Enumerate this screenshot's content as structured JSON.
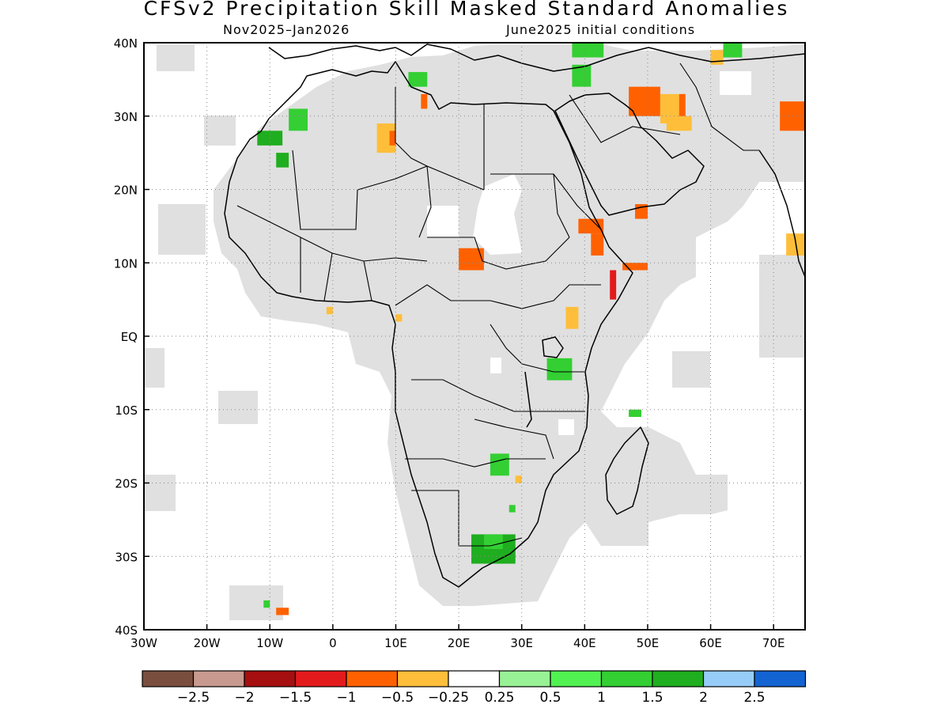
{
  "title": "CFSv2 Precipitation Skill Masked Standard Anomalies",
  "subtitle_left": "Nov2025–Jan2026",
  "subtitle_right": "June2025 initial conditions",
  "map": {
    "lon_range": [
      -30,
      75
    ],
    "lat_range": [
      -40,
      40
    ],
    "grid": true,
    "x_ticks": [
      {
        "value": -30,
        "label": "30W"
      },
      {
        "value": -20,
        "label": "20W"
      },
      {
        "value": -10,
        "label": "10W"
      },
      {
        "value": 0,
        "label": "0"
      },
      {
        "value": 10,
        "label": "10E"
      },
      {
        "value": 20,
        "label": "20E"
      },
      {
        "value": 30,
        "label": "30E"
      },
      {
        "value": 40,
        "label": "40E"
      },
      {
        "value": 50,
        "label": "50E"
      },
      {
        "value": 60,
        "label": "60E"
      },
      {
        "value": 70,
        "label": "70E"
      }
    ],
    "y_ticks": [
      {
        "value": 40,
        "label": "40N"
      },
      {
        "value": 30,
        "label": "30N"
      },
      {
        "value": 20,
        "label": "20N"
      },
      {
        "value": 10,
        "label": "10N"
      },
      {
        "value": 0,
        "label": "EQ"
      },
      {
        "value": -10,
        "label": "10S"
      },
      {
        "value": -20,
        "label": "20S"
      },
      {
        "value": -30,
        "label": "30S"
      },
      {
        "value": -40,
        "label": "40S"
      }
    ],
    "masked_color": "#e0e0e0",
    "anomaly_patches": [
      {
        "lon": [
          -12,
          -8
        ],
        "lat": [
          26,
          28
        ],
        "level": 1.5
      },
      {
        "lon": [
          -7,
          -4
        ],
        "lat": [
          28,
          31
        ],
        "level": 1
      },
      {
        "lon": [
          -9,
          -7
        ],
        "lat": [
          23,
          25
        ],
        "level": 1.5
      },
      {
        "lon": [
          7,
          10
        ],
        "lat": [
          25,
          29
        ],
        "level": -0.5
      },
      {
        "lon": [
          9,
          10
        ],
        "lat": [
          26,
          28
        ],
        "level": -1
      },
      {
        "lon": [
          12,
          15
        ],
        "lat": [
          34,
          36
        ],
        "level": 1
      },
      {
        "lon": [
          14,
          15
        ],
        "lat": [
          31,
          33
        ],
        "level": -1
      },
      {
        "lon": [
          20,
          24
        ],
        "lat": [
          9,
          12
        ],
        "level": -1
      },
      {
        "lon": [
          39,
          43
        ],
        "lat": [
          14,
          16
        ],
        "level": -1
      },
      {
        "lon": [
          41,
          43
        ],
        "lat": [
          11,
          14
        ],
        "level": -1
      },
      {
        "lon": [
          48,
          50
        ],
        "lat": [
          16,
          18
        ],
        "level": -1
      },
      {
        "lon": [
          46,
          50
        ],
        "lat": [
          9,
          10
        ],
        "level": -1
      },
      {
        "lon": [
          44,
          45
        ],
        "lat": [
          5,
          9
        ],
        "level": -1.5
      },
      {
        "lon": [
          37,
          39
        ],
        "lat": [
          1,
          4
        ],
        "level": -0.5
      },
      {
        "lon": [
          34,
          38
        ],
        "lat": [
          -6,
          -3
        ],
        "level": 1
      },
      {
        "lon": [
          47,
          49
        ],
        "lat": [
          -11,
          -10
        ],
        "level": 1
      },
      {
        "lon": [
          25,
          28
        ],
        "lat": [
          -19,
          -16
        ],
        "level": 1
      },
      {
        "lon": [
          28,
          29
        ],
        "lat": [
          -24,
          -23
        ],
        "level": 1
      },
      {
        "lon": [
          29,
          30
        ],
        "lat": [
          -20,
          -19
        ],
        "level": -0.5
      },
      {
        "lon": [
          22,
          29
        ],
        "lat": [
          -31,
          -27
        ],
        "level": 1.5
      },
      {
        "lon": [
          24,
          27
        ],
        "lat": [
          -29,
          -27
        ],
        "level": 1
      },
      {
        "lon": [
          -11,
          -10
        ],
        "lat": [
          -37,
          -36
        ],
        "level": 1
      },
      {
        "lon": [
          -9,
          -7
        ],
        "lat": [
          -38,
          -37
        ],
        "level": -1
      },
      {
        "lon": [
          -1,
          0
        ],
        "lat": [
          3,
          4
        ],
        "level": -0.5
      },
      {
        "lon": [
          10,
          11
        ],
        "lat": [
          2,
          3
        ],
        "level": -0.5
      },
      {
        "lon": [
          38,
          43
        ],
        "lat": [
          38,
          40
        ],
        "level": 1
      },
      {
        "lon": [
          38,
          41
        ],
        "lat": [
          34,
          37
        ],
        "level": 1
      },
      {
        "lon": [
          47,
          52
        ],
        "lat": [
          30,
          34
        ],
        "level": -1
      },
      {
        "lon": [
          52,
          56
        ],
        "lat": [
          29,
          33
        ],
        "level": -0.5
      },
      {
        "lon": [
          53,
          57
        ],
        "lat": [
          28,
          30
        ],
        "level": -0.5
      },
      {
        "lon": [
          55,
          56
        ],
        "lat": [
          30,
          33
        ],
        "level": -1
      },
      {
        "lon": [
          60,
          62
        ],
        "lat": [
          37,
          39
        ],
        "level": -0.5
      },
      {
        "lon": [
          62,
          65
        ],
        "lat": [
          38,
          40
        ],
        "level": 1
      },
      {
        "lon": [
          71,
          75
        ],
        "lat": [
          28,
          32
        ],
        "level": -1
      },
      {
        "lon": [
          72,
          75
        ],
        "lat": [
          11,
          14
        ],
        "level": -0.5
      }
    ]
  },
  "colorbar": {
    "colors": [
      "#7a4e3f",
      "#c89a8f",
      "#a50f0f",
      "#e31a1c",
      "#ff6100",
      "#ffbe3a",
      "#ffffff",
      "#98f295",
      "#51f151",
      "#33cf33",
      "#1fae1f",
      "#96cdf8",
      "#1463d2"
    ],
    "labels": [
      "−2.5",
      "−2",
      "−1.5",
      "−1",
      "−0.5",
      "−0.25",
      "0.25",
      "0.5",
      "1",
      "1.5",
      "2",
      "2.5"
    ]
  }
}
